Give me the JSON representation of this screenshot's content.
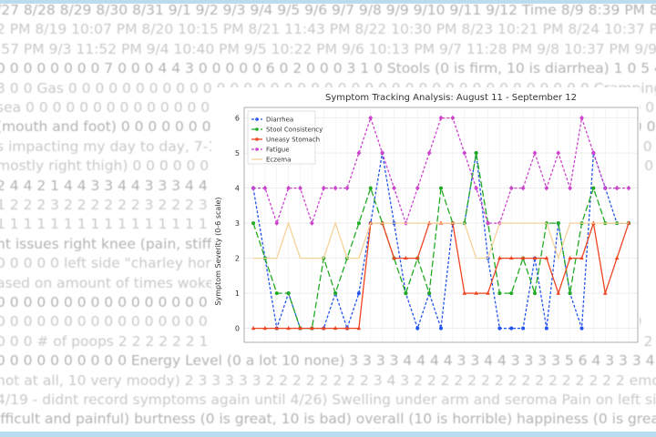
{
  "background_text": [
    "/27 8/28 8/29 8/30 8/31 9/1 9/2 9/3 9/4 9/5 9/6 9/7 9/8 9/9 9/10 9/11 9/12 Time 8/9 8:39 PM 8/10 9:37 PM",
    "2 PM 8/19 10:07 PM 8/20 10:15 PM 8/21 11:43 PM 8/22 10:30 PM 8/23 10:21 PM 8/24 10:37 PM 8/25 11:02",
    ":57 PM 9/3 11:52 PM 9/4 10:40 PM 9/5 10:22 PM 9/6 10:13 PM 9/7 11:28 PM 9/8 10:37 PM 9/9 10:01 PM 9",
    "0 0 0 0 0 0 0 0 7 0 0 0 4 4 3 0 0 0 0 0 6 0 2 0 0 0 3 1 0 Stools (0 is firm, 10 is diarrhea) 1 0 5 4 1 0 0 1 2 1 3 1 7",
    "3 0 0 Gas 0 0 0 0 0 0 0 0 0 0 0 0 0 0 0 0 0 0 0 0 0 0 0 0 0 0 0 0 0 0 0 0 0 0 0 0 0 0 0 Cramping 0 1 0 0 0 0 0 0 0 0",
    "sea 0 0 0 0 0 0 0 0 0 0 0 0 0 0 0 0 0 0 0 0 0 0 0 0 0 0 0 0 0 0 0 0 0 0 0 0 0 0 0 0 0 0 0 0 0 0 0 0 0 0 0 0 0 0",
    "(mouth and foot) 0 0 0 0 0 0 0 0 0 0 0 0 0 0 0 0 0 0 0 0 0 0 0 0 0 0 0 0 0 0 0 0 0 0 0 0 0 0 0 0 0 0 0 0",
    "s impacting my day to day, 7-10 is sc 0 0 0 0 0 0 0 0 0 0 0 0 0 0 0 0 0 0 0 0 0 0 0 0 0 0 0 0 0 is one",
    "mostly right thigh) 0 0 0 0 0 0 0 0 0 0 0 0 0 0 0 0 0 0 0 0 0 0 0 0 0 0 0 0 0 0 0 0 0 0 0 0 0 0 0 legs 0",
    "2 4 4 2 1 4 4 3 3 4 4 3 3 3 4 4 4 4 4 3 3 3 3 3 3 3 3 3 3 4 4 4 4 4 4 4 4 4 4 3 3 3 3 3 3 3 3",
    "1 2 2 2 3 2 2 2 2 2 2 3 2 2 2 3 3 2 2 2 2 2 2 2 2 2 2 2 2 2 2 2 2 2 2 2 2 2 2 2 2 2",
    "1 1 1 1 1 1 1 1 1 1 1 1 1 1 1 1 1 1 1 1 1 1 1 1 1 1 1 1 1 1 1 1 1 1 1 1 1 1 1 1 1 1 1",
    "nt issues right knee (pain, stiffnes 0 0 0 0 0 0 0 0 0 0 0 0 0 0 0 0 0 0 0 0 0 0 0 0 0 0 0",
    "0 0 0 0 0 left side \"charley horse\" (a 0 0 0 0 0 0 0 0 0 0 0 0 0 0 0 0 0 0 0 0 0 0 0 0 0 0",
    "ased on amount of times woke up 0 0 0 0 0 0 0 0 0 0 0 0 0 0 0 0 0 0 0 0 0 0 0 0 4 4 6 3 1",
    "0 0 0 0 0 0 0 0 0 0 0 0 0 0 0 0 cold extr 0 0 0 0 0 0 0 0 0 0 0 0 0 0 0 0 0 0 0 0 0 0 feeli",
    "0 0 0 0 0 0 0 0 0 0 0 0 0 0 0 0 0 0 0 0 0 0 0 0 0 0 0 0 0 0 feelin 0 0 0 0 0 0 0 0 0 0 0 0 0 0 0",
    "0 0 0 # of poops 2 2 2 2 2 2 1 3 3 3 2 2 2 2 2 2 2 2 2 2 2 2 2 2 2 3 2 2 2 1 2 2 1 2 2 2 2 2 2 2 2 2",
    "0 0 0 0 0 0 0 0 0 0 Energy Level (0 a lot 10 none) 3 3 3 3 4 4 4 4 3 3 4 4 3 3 3 3 5 6 4 3 3 3 4 4 3 3 3 3 3 3 3 2 0 0",
    "not at all, 10 very moody) 2 3 3 3 3 3 2 2 2 2 2 2 2 2 3 4 3 2 2 2 2 2 2 2 2 2 2 2 2 2 2 2 2 emotions (0 is great",
    "4/19 - didnt record symptoms again until 4/26) Swelling under arm and seroma Pain on left side not moving (0",
    "ifficult and painful) burtness (0 is great, 10 is bad) overall (10 is horrible) happiness (0 is great, 10 is bad) 4 3 5"
  ],
  "chart_data": {
    "type": "line",
    "title": "Symptom Tracking Analysis: August 11 - September 12",
    "xlabel": "",
    "ylabel": "Symptom Severity (0-6 scale)",
    "x": [
      0,
      1,
      2,
      3,
      4,
      5,
      6,
      7,
      8,
      9,
      10,
      11,
      12,
      13,
      14,
      15,
      16,
      17,
      18,
      19,
      20,
      21,
      22,
      23,
      24,
      25,
      26,
      27,
      28,
      29,
      30,
      31,
      32
    ],
    "ylim": [
      -0.4,
      6.3
    ],
    "yticks": [
      "0",
      "1",
      "2",
      "3",
      "4",
      "5",
      "6"
    ],
    "grid": true,
    "legend_position": "top-left",
    "series": [
      {
        "name": "Diarrhea",
        "color": "#2255ee",
        "dash": "3,2",
        "marker": "circle",
        "values": [
          4,
          2,
          0,
          1,
          0,
          0,
          0,
          1,
          0,
          1,
          3,
          5,
          3,
          1,
          0,
          1,
          0,
          3,
          3,
          5,
          2,
          0,
          0,
          0,
          2,
          0,
          3,
          1,
          0,
          5,
          4,
          3,
          3
        ]
      },
      {
        "name": "Stool Consistency",
        "color": "#22aa22",
        "dash": "7,3",
        "marker": "circle",
        "values": [
          3,
          2,
          1,
          1,
          0,
          0,
          2,
          1,
          2,
          3,
          4,
          3,
          2,
          1,
          2,
          1,
          4,
          3,
          3,
          5,
          3,
          1,
          1,
          2,
          1,
          3,
          3,
          1,
          3,
          4,
          3,
          3,
          3
        ]
      },
      {
        "name": "Uneasy Stomach",
        "color": "#ee4422",
        "dash": "",
        "marker": "triangle",
        "values": [
          0,
          0,
          0,
          0,
          0,
          0,
          0,
          0,
          0,
          0,
          3,
          3,
          2,
          2,
          2,
          3,
          3,
          3,
          1,
          1,
          1,
          2,
          2,
          2,
          2,
          2,
          1,
          2,
          2,
          3,
          1,
          2,
          3
        ]
      },
      {
        "name": "Fatigue",
        "color": "#cc44cc",
        "dash": "3,2",
        "marker": "diamond",
        "values": [
          4,
          4,
          3,
          4,
          4,
          3,
          4,
          4,
          4,
          5,
          6,
          5,
          4,
          3,
          4,
          5,
          6,
          6,
          5,
          4,
          3,
          3,
          4,
          4,
          5,
          4,
          5,
          4,
          6,
          5,
          4,
          4,
          4
        ]
      },
      {
        "name": "Eczema",
        "color": "#f5d29a",
        "dash": "",
        "marker": "none",
        "values": [
          2,
          2,
          2,
          3,
          2,
          2,
          2,
          3,
          2,
          2,
          3,
          3,
          3,
          3,
          3,
          3,
          3,
          3,
          3,
          2,
          2,
          3,
          3,
          3,
          3,
          3,
          2,
          3,
          3,
          3,
          3,
          3,
          3
        ]
      }
    ]
  }
}
